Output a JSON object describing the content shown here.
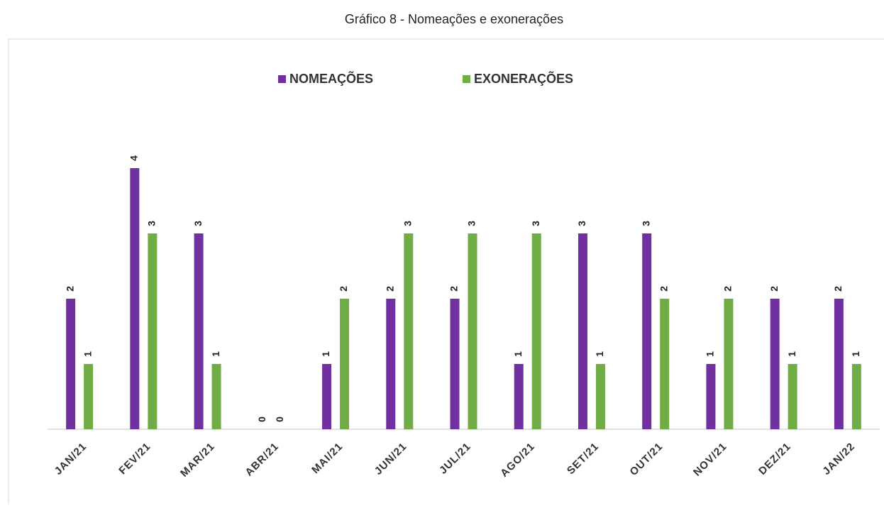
{
  "chart_data": {
    "type": "bar",
    "title": "Gráfico 8 - Nomeações e exonerações",
    "categories": [
      "JAN/21",
      "FEV/21",
      "MAR/21",
      "ABR/21",
      "MAI/21",
      "JUN/21",
      "JUL/21",
      "AGO/21",
      "SET/21",
      "OUT/21",
      "NOV/21",
      "DEZ/21",
      "JAN/22"
    ],
    "series": [
      {
        "name": "NOMEAÇÕES",
        "color": "#7030a0",
        "values": [
          2,
          4,
          3,
          0,
          1,
          2,
          2,
          1,
          3,
          3,
          1,
          2,
          2
        ]
      },
      {
        "name": "EXONERAÇÕES",
        "color": "#70ad47",
        "values": [
          1,
          3,
          1,
          0,
          2,
          3,
          3,
          3,
          1,
          2,
          2,
          1,
          1
        ]
      }
    ],
    "ylim": [
      0,
      5
    ],
    "legend": "top",
    "grid": false
  }
}
